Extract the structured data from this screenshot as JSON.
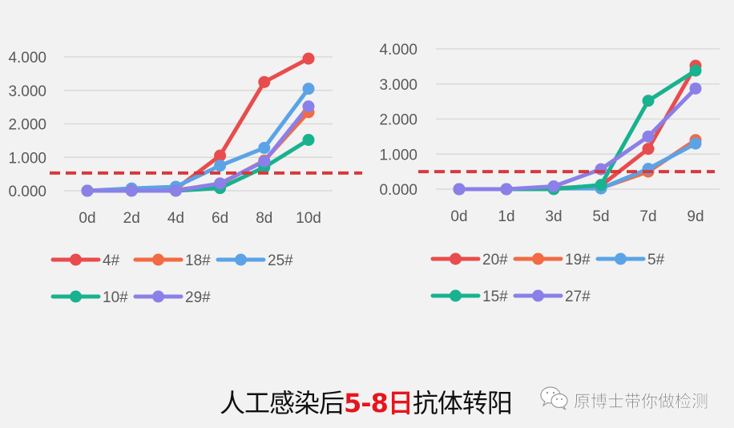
{
  "chart_data": [
    {
      "type": "line",
      "title": "",
      "xlabel": "",
      "ylabel": "",
      "categories": [
        "0d",
        "2d",
        "4d",
        "6d",
        "8d",
        "10d"
      ],
      "ylim": [
        0,
        4
      ],
      "yticks": [
        "0.000",
        "1.000",
        "2.000",
        "3.000",
        "4.000"
      ],
      "grid": true,
      "threshold": 0.53,
      "threshold_color": "#d9383a",
      "legend_position": "bottom",
      "series": [
        {
          "name": "4#",
          "color": "#e84c4c",
          "values": [
            0.0,
            0.05,
            0.05,
            1.05,
            3.25,
            3.95
          ]
        },
        {
          "name": "18#",
          "color": "#f26b43",
          "values": [
            0.0,
            0.02,
            0.02,
            0.2,
            0.9,
            2.35
          ]
        },
        {
          "name": "25#",
          "color": "#5ba3e6",
          "values": [
            0.0,
            0.07,
            0.12,
            0.75,
            1.28,
            3.05
          ]
        },
        {
          "name": "10#",
          "color": "#18b28f",
          "values": [
            0.0,
            0.0,
            0.0,
            0.08,
            0.7,
            1.52
          ]
        },
        {
          "name": "29#",
          "color": "#8b7fe8",
          "values": [
            0.0,
            0.0,
            0.0,
            0.22,
            0.88,
            2.52
          ]
        }
      ]
    },
    {
      "type": "line",
      "title": "",
      "xlabel": "",
      "ylabel": "",
      "categories": [
        "0d",
        "1d",
        "3d",
        "5d",
        "7d",
        "9d"
      ],
      "ylim": [
        0,
        4
      ],
      "yticks": [
        "0.000",
        "1.000",
        "2.000",
        "3.000",
        "4.000"
      ],
      "grid": true,
      "threshold": 0.5,
      "threshold_color": "#d9383a",
      "legend_position": "bottom",
      "series": [
        {
          "name": "20#",
          "color": "#e84c4c",
          "values": [
            0.0,
            0.0,
            0.02,
            0.1,
            1.15,
            3.52
          ]
        },
        {
          "name": "19#",
          "color": "#f26b43",
          "values": [
            0.0,
            0.0,
            0.02,
            0.03,
            0.5,
            1.4
          ]
        },
        {
          "name": "5#",
          "color": "#5ba3e6",
          "values": [
            0.0,
            0.0,
            0.02,
            0.02,
            0.58,
            1.3
          ]
        },
        {
          "name": "15#",
          "color": "#18b28f",
          "values": [
            0.0,
            0.0,
            0.0,
            0.12,
            2.52,
            3.38
          ]
        },
        {
          "name": "27#",
          "color": "#8b7fe8",
          "values": [
            0.0,
            0.0,
            0.08,
            0.57,
            1.5,
            2.87
          ]
        }
      ]
    }
  ],
  "caption": {
    "prefix": "人工感染后",
    "highlight": "5-8日",
    "suffix": "抗体转阳"
  },
  "watermark": {
    "icon": "wechat-icon",
    "text": "原博士带你做检测"
  }
}
